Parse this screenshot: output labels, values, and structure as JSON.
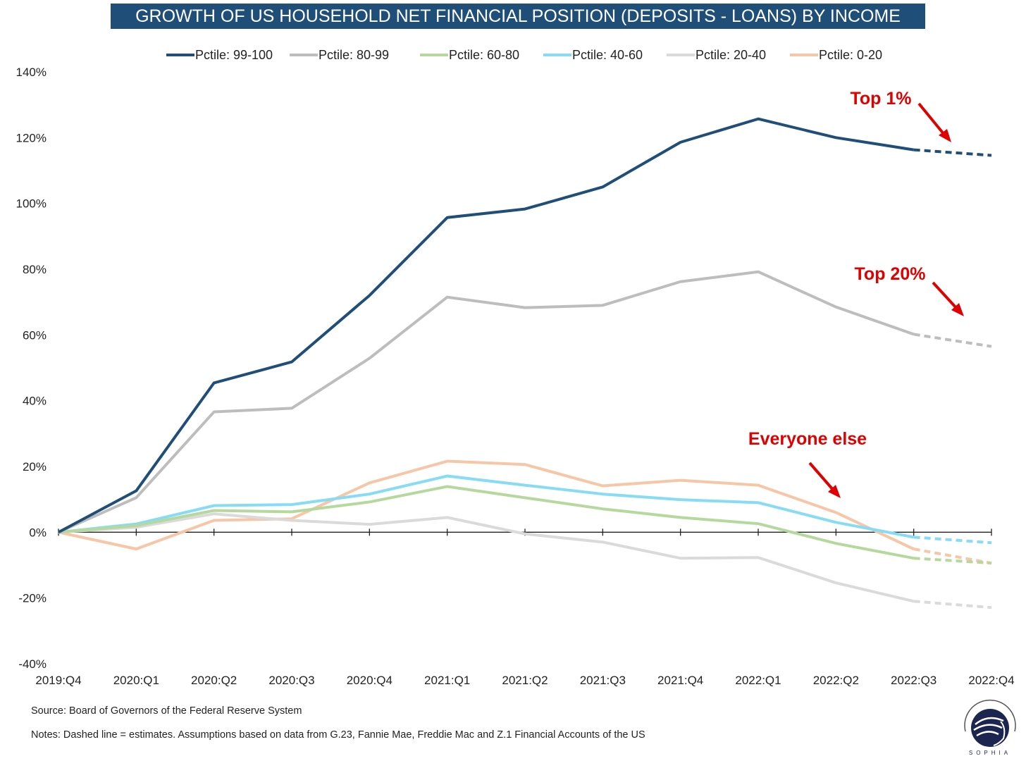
{
  "chart_data": {
    "type": "line",
    "title": "GROWTH OF US HOUSEHOLD NET FINANCIAL POSITION (DEPOSITS - LOANS) BY INCOME",
    "xlabel": "",
    "ylabel": "",
    "categories": [
      "2019:Q4",
      "2020:Q1",
      "2020:Q2",
      "2020:Q3",
      "2020:Q4",
      "2021:Q1",
      "2021:Q2",
      "2021:Q3",
      "2021:Q4",
      "2022:Q1",
      "2022:Q2",
      "2022:Q3",
      "2022:Q4"
    ],
    "ylim": [
      -40,
      140
    ],
    "yticks": [
      -40,
      -20,
      0,
      20,
      40,
      60,
      80,
      100,
      120,
      140
    ],
    "ytick_labels": [
      "-40%",
      "-20%",
      "0%",
      "20%",
      "40%",
      "60%",
      "80%",
      "100%",
      "120%",
      "140%"
    ],
    "grid": false,
    "legend_position": "top",
    "estimated_from_index": 11,
    "series": [
      {
        "name": "Pctile: 99-100",
        "color": "#1f4e79",
        "values": [
          0,
          12.6,
          45.4,
          51.8,
          72,
          95.7,
          98.3,
          105,
          118.6,
          125.7,
          120,
          116.3,
          114.6
        ]
      },
      {
        "name": "Pctile: 80-99",
        "color": "#bdbdbd",
        "values": [
          0,
          10.5,
          36.6,
          37.7,
          52.9,
          71.5,
          68.3,
          69,
          76.2,
          79.2,
          68.5,
          60.2,
          56.5
        ]
      },
      {
        "name": "Pctile: 60-80",
        "color": "#b5d99c",
        "values": [
          0,
          2,
          6.6,
          6.2,
          9.2,
          13.9,
          10.5,
          7.1,
          4.5,
          2.6,
          -3.4,
          -7.9,
          -9.4
        ]
      },
      {
        "name": "Pctile: 40-60",
        "color": "#86dcf4",
        "values": [
          0,
          2.5,
          8.1,
          8.4,
          11.6,
          17.1,
          14.3,
          11.6,
          9.9,
          9,
          3,
          -1.5,
          -3.2
        ]
      },
      {
        "name": "Pctile: 20-40",
        "color": "#dadada",
        "values": [
          0,
          1.5,
          5.6,
          3.6,
          2.4,
          4.5,
          -0.5,
          -3,
          -7.9,
          -7.7,
          -15.4,
          -21,
          -22.9
        ]
      },
      {
        "name": "Pctile: 0-20",
        "color": "#f7c6a6",
        "values": [
          0,
          -5.1,
          3.6,
          4.1,
          15,
          21.6,
          20.6,
          14.1,
          15.8,
          14.3,
          6,
          -5.1,
          -9.4
        ]
      }
    ],
    "annotations": [
      {
        "text": "Top 1%",
        "color": "#e00000"
      },
      {
        "text": "Top 20%",
        "color": "#e00000"
      },
      {
        "text": "Everyone else",
        "color": "#e00000"
      }
    ]
  },
  "footer": {
    "source": "Source: Board of Governors of the Federal Reserve System",
    "notes": "Notes: Dashed line = estimates. Assumptions based on data from G.23, Fannie Mae, Freddie Mac and Z.1 Financial Accounts of the US"
  },
  "logo": {
    "text": "SOPHIA"
  }
}
